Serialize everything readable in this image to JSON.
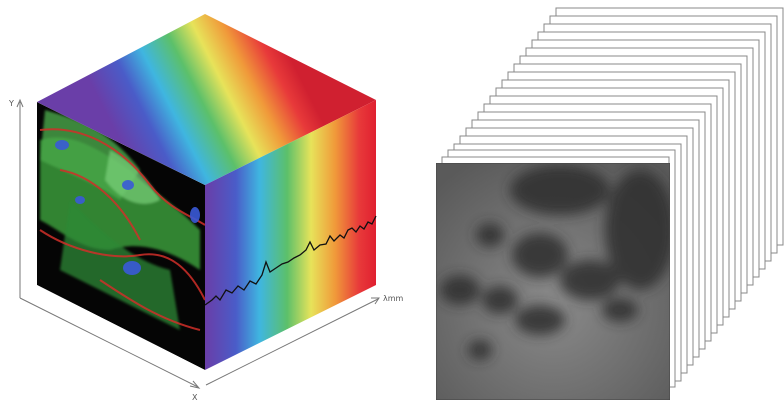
{
  "labels": {
    "y_axis": "Y",
    "x_axis": "X",
    "lambda_axis": "λmm"
  }
}
